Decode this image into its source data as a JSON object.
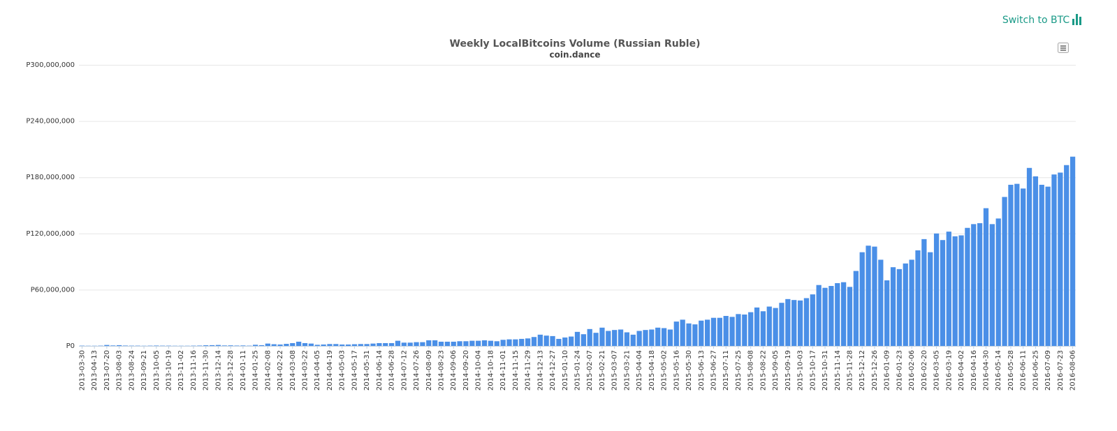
{
  "controls": {
    "switch": "Switch to BTC"
  },
  "chart_data": {
    "type": "bar",
    "title": "Weekly LocalBitcoins Volume (Russian Ruble)",
    "subtitle": "coin.dance",
    "color": "#4a8fe7",
    "grid": true,
    "ylim": [
      0,
      300000000
    ],
    "yticks": [
      {
        "value": 0,
        "label": "P0"
      },
      {
        "value": 60000000,
        "label": "P60,000,000"
      },
      {
        "value": 120000000,
        "label": "P120,000,000"
      },
      {
        "value": 180000000,
        "label": "P180,000,000"
      },
      {
        "value": 240000000,
        "label": "P240,000,000"
      },
      {
        "value": 300000000,
        "label": "P300,000,000"
      }
    ],
    "categories": [
      "2013-03-30",
      null,
      "2013-04-13",
      null,
      "2013-07-20",
      null,
      "2013-08-03",
      null,
      "2013-08-24",
      null,
      "2013-09-21",
      null,
      "2013-10-05",
      null,
      "2013-10-19",
      null,
      "2013-11-02",
      null,
      "2013-11-16",
      null,
      "2013-11-30",
      null,
      "2013-12-14",
      null,
      "2013-12-28",
      null,
      "2014-01-11",
      null,
      "2014-01-25",
      null,
      "2014-02-08",
      null,
      "2014-02-22",
      null,
      "2014-03-08",
      null,
      "2014-03-22",
      null,
      "2014-04-05",
      null,
      "2014-04-19",
      null,
      "2014-05-03",
      null,
      "2014-05-17",
      null,
      "2014-05-31",
      null,
      "2014-06-14",
      null,
      "2014-06-28",
      null,
      "2014-07-12",
      null,
      "2014-07-26",
      null,
      "2014-08-09",
      null,
      "2014-08-23",
      null,
      "2014-09-06",
      null,
      "2014-09-20",
      null,
      "2014-10-04",
      null,
      "2014-10-18",
      null,
      "2014-11-01",
      null,
      "2014-11-15",
      null,
      "2014-11-29",
      null,
      "2014-12-13",
      null,
      "2014-12-27",
      null,
      "2015-01-10",
      null,
      "2015-01-24",
      null,
      "2015-02-07",
      null,
      "2015-02-21",
      null,
      "2015-03-07",
      null,
      "2015-03-21",
      null,
      "2015-04-04",
      null,
      "2015-04-18",
      null,
      "2015-05-02",
      null,
      "2015-05-16",
      null,
      "2015-05-30",
      null,
      "2015-06-13",
      null,
      "2015-06-27",
      null,
      "2015-07-11",
      null,
      "2015-07-25",
      null,
      "2015-08-08",
      null,
      "2015-08-22",
      null,
      "2015-09-05",
      null,
      "2015-09-19",
      null,
      "2015-10-03",
      null,
      "2015-10-17",
      null,
      "2015-10-31",
      null,
      "2015-11-14",
      null,
      "2015-11-28",
      null,
      "2015-12-12",
      null,
      "2015-12-26",
      null,
      "2016-01-09",
      null,
      "2016-01-23",
      null,
      "2016-02-06",
      null,
      "2016-02-20",
      null,
      "2016-03-05",
      null,
      "2016-03-19",
      null,
      "2016-04-02",
      null,
      "2016-04-16",
      null,
      "2016-04-30",
      null,
      "2016-05-14",
      null,
      "2016-05-28",
      null,
      "2016-06-11",
      null,
      "2016-06-25",
      null,
      "2016-07-09",
      null,
      "2016-07-23",
      null,
      "2016-08-06"
    ],
    "values": [
      300000,
      200000,
      200000,
      300000,
      1000000,
      500000,
      800000,
      400000,
      300000,
      300000,
      200000,
      300000,
      400000,
      300000,
      300000,
      200000,
      200000,
      200000,
      300000,
      400000,
      700000,
      800000,
      1000000,
      500000,
      600000,
      400000,
      500000,
      300000,
      1200000,
      800000,
      2500000,
      1800000,
      1500000,
      2200000,
      3000000,
      4500000,
      3000000,
      2500000,
      1200000,
      1500000,
      2000000,
      2000000,
      1500000,
      1500000,
      1800000,
      2000000,
      2000000,
      2500000,
      3000000,
      3000000,
      3000000,
      5500000,
      3500000,
      3500000,
      4000000,
      4000000,
      6000000,
      6000000,
      4500000,
      4500000,
      4500000,
      5000000,
      5000000,
      5500000,
      5500000,
      6000000,
      5500000,
      5000000,
      6500000,
      7000000,
      7000000,
      7500000,
      8000000,
      9500000,
      12000000,
      11000000,
      10500000,
      7500000,
      9000000,
      10000000,
      15000000,
      12500000,
      18000000,
      14000000,
      19500000,
      16000000,
      17000000,
      17500000,
      14500000,
      12000000,
      16000000,
      17000000,
      17500000,
      19500000,
      19000000,
      17500000,
      26000000,
      28000000,
      24000000,
      23000000,
      27000000,
      28000000,
      30000000,
      30000000,
      32000000,
      31000000,
      34000000,
      33500000,
      36000000,
      41000000,
      37000000,
      42000000,
      40500000,
      46000000,
      50000000,
      49000000,
      48500000,
      51000000,
      55000000,
      65000000,
      62000000,
      64000000,
      67000000,
      68000000,
      63000000,
      80000000,
      100000000,
      107000000,
      106000000,
      92000000,
      70000000,
      84000000,
      82000000,
      88000000,
      92000000,
      102000000,
      114000000,
      100000000,
      120000000,
      113000000,
      122000000,
      117000000,
      118000000,
      126000000,
      130000000,
      131000000,
      147000000,
      130000000,
      136000000,
      159000000,
      172000000,
      173000000,
      168000000,
      190000000,
      181000000,
      172000000,
      170000000,
      183000000,
      185000000,
      193000000,
      202000000
    ]
  }
}
